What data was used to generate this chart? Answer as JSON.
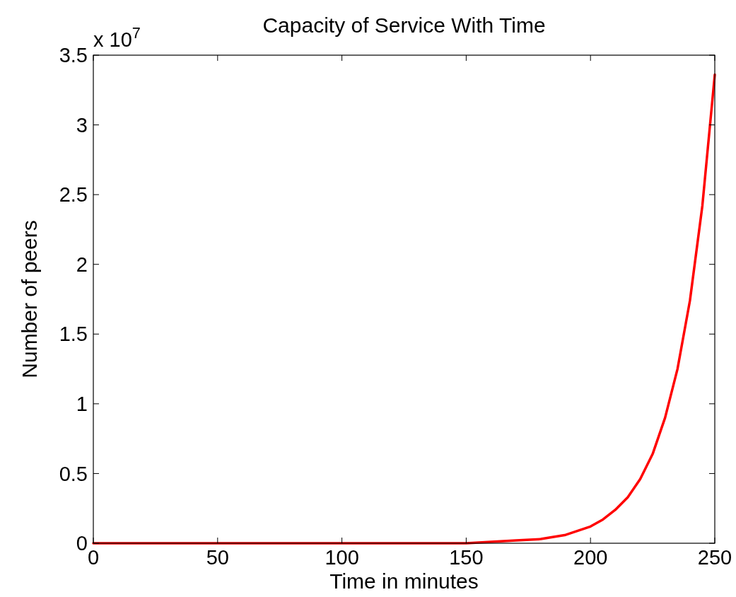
{
  "chart_data": {
    "type": "line",
    "title": "Capacity of Service With Time",
    "xlabel": "Time in minutes",
    "ylabel": "Number of peers",
    "annotations": [
      "x 10$^{7}$"
    ],
    "x": [
      0,
      50,
      100,
      140,
      150,
      160,
      170,
      180,
      190,
      200,
      205,
      210,
      215,
      220,
      225,
      230,
      235,
      240,
      245,
      250
    ],
    "series": [
      {
        "color": "#ff0000",
        "values": [
          0,
          0,
          0,
          0,
          0,
          0.01,
          0.02,
          0.03,
          0.06,
          0.12,
          0.17,
          0.24,
          0.33,
          0.46,
          0.64,
          0.9,
          1.25,
          1.74,
          2.42,
          3.36
        ]
      }
    ],
    "xlim": [
      0,
      250
    ],
    "xticks": [
      0,
      50,
      100,
      150,
      200,
      250
    ],
    "ylim": [
      0,
      3.5
    ],
    "yticks": [
      0,
      0.5,
      1,
      1.5,
      2,
      2.5,
      3,
      3.5
    ],
    "grid": false,
    "line_style": "solid",
    "marker": "none"
  }
}
